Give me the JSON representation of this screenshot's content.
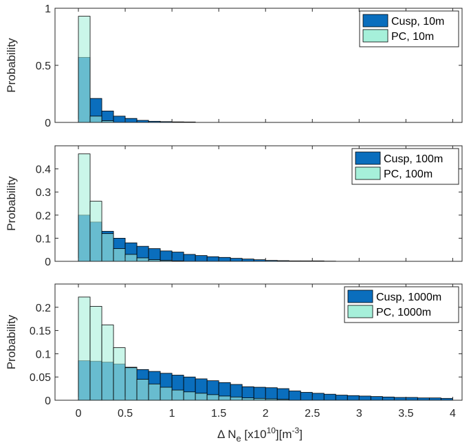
{
  "colors": {
    "cusp": "#0a6ebd",
    "pc": "#a6f0da",
    "overlap": "#24a8b2",
    "axis": "#262626"
  },
  "shared_xlabel": {
    "prefix": "Δ N",
    "subscript": "e",
    "mid": " [x10",
    "superscript": "10",
    "mid2": "][m",
    "superscript2": "-3",
    "suffix": "]"
  },
  "chart_data": [
    {
      "type": "bar",
      "title": "",
      "ylabel": "Probability",
      "xlim": [
        -0.25,
        4.1
      ],
      "ylim": [
        0,
        1
      ],
      "xticks": [
        "0",
        "0.5",
        "1",
        "1.5",
        "2",
        "2.5",
        "3",
        "3.5",
        "4"
      ],
      "show_xticklabels": false,
      "yticks": [
        "0",
        "0.5",
        "1"
      ],
      "ytick_values": [
        0,
        0.5,
        1
      ],
      "bin_width": 0.125,
      "bin_start": 0,
      "legend_position": "top-right",
      "series": [
        {
          "name": "Cusp, 10m",
          "values": [
            0.57,
            0.21,
            0.1,
            0.055,
            0.035,
            0.018,
            0.01,
            0.007,
            0.005,
            0.004
          ]
        },
        {
          "name": "PC, 10m",
          "values": [
            0.93,
            0.055,
            0.015
          ]
        }
      ]
    },
    {
      "type": "bar",
      "title": "",
      "ylabel": "Probability",
      "xlim": [
        -0.25,
        4.1
      ],
      "ylim": [
        0,
        0.5
      ],
      "xticks": [
        "0",
        "0.5",
        "1",
        "1.5",
        "2",
        "2.5",
        "3",
        "3.5",
        "4"
      ],
      "show_xticklabels": false,
      "yticks": [
        "0",
        "0.1",
        "0.2",
        "0.3",
        "0.4"
      ],
      "ytick_values": [
        0,
        0.1,
        0.2,
        0.3,
        0.4
      ],
      "bin_width": 0.125,
      "bin_start": 0,
      "legend_position": "top-right",
      "series": [
        {
          "name": "Cusp, 100m",
          "values": [
            0.2,
            0.17,
            0.13,
            0.1,
            0.08,
            0.065,
            0.055,
            0.045,
            0.04,
            0.03,
            0.025,
            0.02,
            0.017,
            0.013,
            0.01,
            0.007,
            0.004,
            0.003,
            0.002,
            0.002,
            0.002,
            0.001
          ]
        },
        {
          "name": "PC, 100m",
          "values": [
            0.465,
            0.26,
            0.12,
            0.055,
            0.03,
            0.015,
            0.007,
            0.004,
            0.002
          ]
        }
      ]
    },
    {
      "type": "bar",
      "title": "",
      "ylabel": "Probability",
      "xlim": [
        -0.25,
        4.1
      ],
      "ylim": [
        0,
        0.25
      ],
      "xticks": [
        "0",
        "0.5",
        "1",
        "1.5",
        "2",
        "2.5",
        "3",
        "3.5",
        "4"
      ],
      "show_xticklabels": true,
      "yticks": [
        "0",
        "0.05",
        "0.1",
        "0.15",
        "0.2"
      ],
      "ytick_values": [
        0,
        0.05,
        0.1,
        0.15,
        0.2
      ],
      "bin_width": 0.125,
      "bin_start": 0,
      "legend_position": "top-right",
      "series": [
        {
          "name": "Cusp, 1000m",
          "values": [
            0.085,
            0.084,
            0.082,
            0.078,
            0.071,
            0.066,
            0.062,
            0.058,
            0.054,
            0.05,
            0.046,
            0.042,
            0.038,
            0.034,
            0.029,
            0.028,
            0.027,
            0.025,
            0.02,
            0.017,
            0.015,
            0.013,
            0.011,
            0.01,
            0.009,
            0.008,
            0.007,
            0.006,
            0.006,
            0.005,
            0.005,
            0.004
          ]
        },
        {
          "name": "PC, 1000m",
          "values": [
            0.222,
            0.202,
            0.162,
            0.113,
            0.07,
            0.045,
            0.035,
            0.028,
            0.022,
            0.018,
            0.015,
            0.012,
            0.009,
            0.007,
            0.005,
            0.004,
            0.003,
            0.002
          ]
        }
      ]
    }
  ]
}
